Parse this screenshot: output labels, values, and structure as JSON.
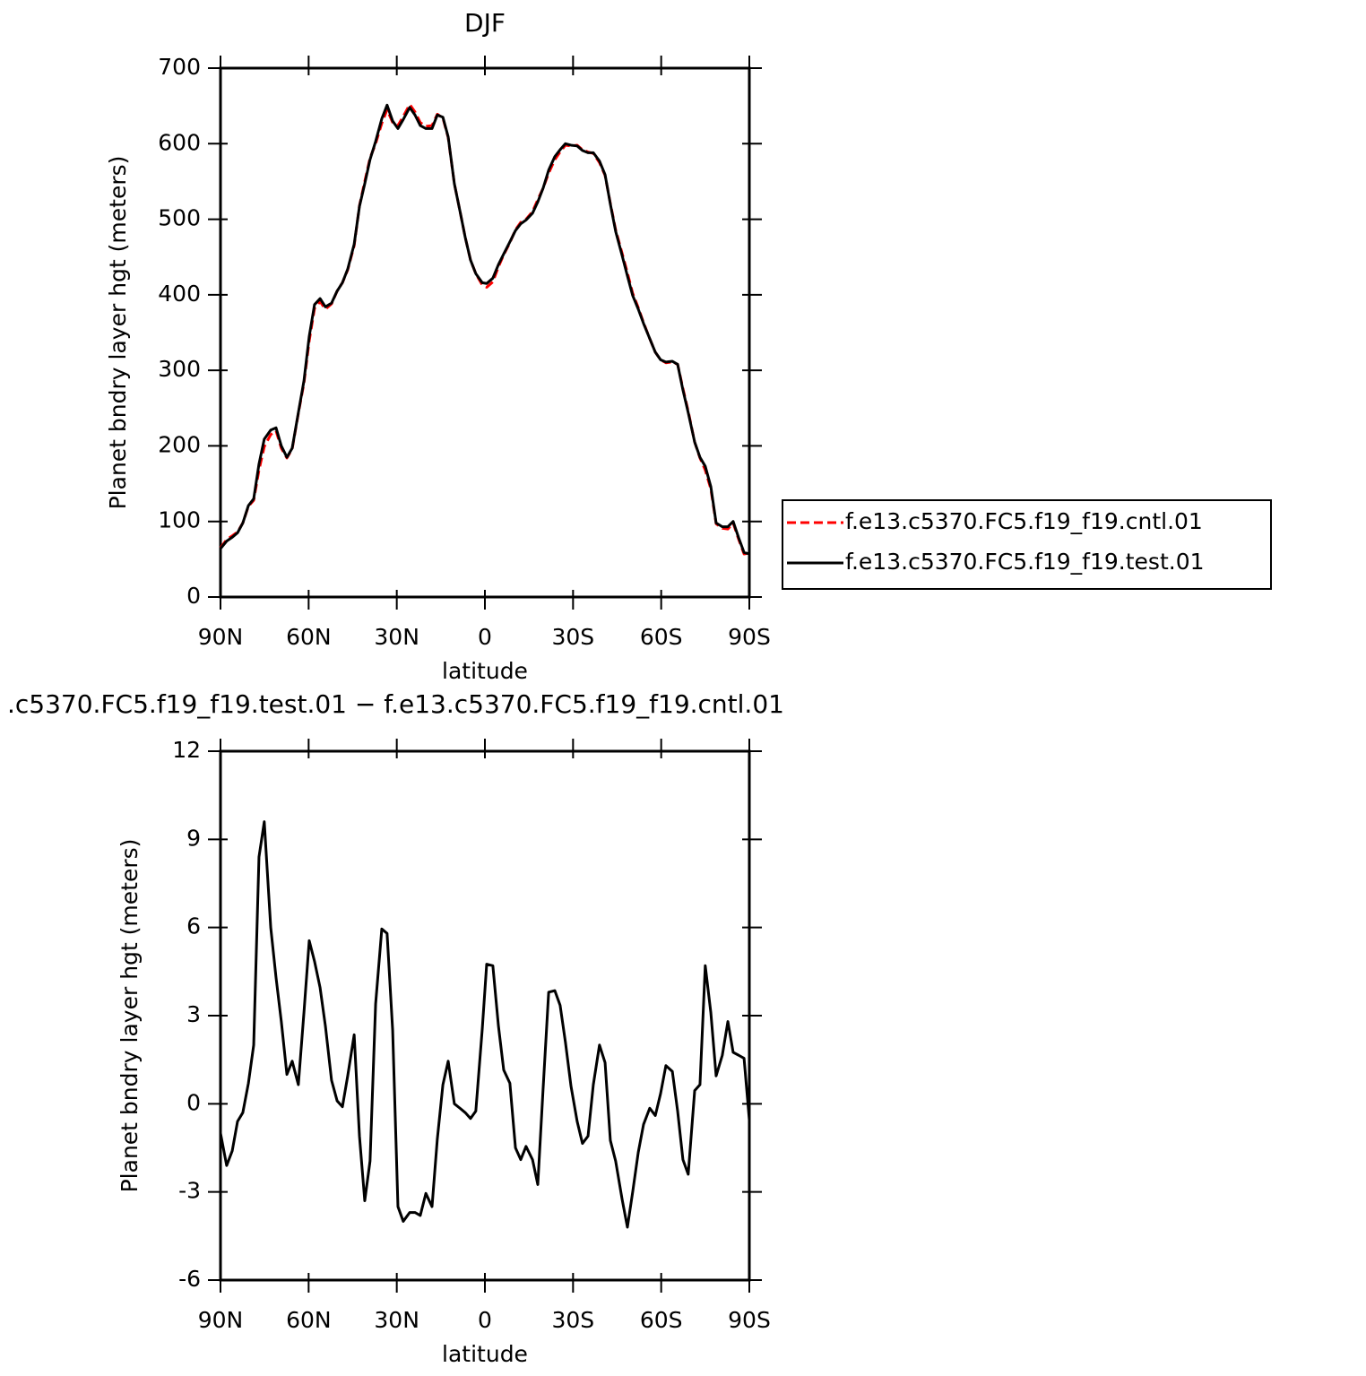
{
  "chart_data": [
    {
      "type": "line",
      "title": "DJF",
      "xlabel": "latitude",
      "ylabel": "Planet bndry layer hgt (meters)",
      "xlim": [
        90,
        -90
      ],
      "xticks": [
        {
          "value": 90,
          "label": "90N"
        },
        {
          "value": 60,
          "label": "60N"
        },
        {
          "value": 30,
          "label": "30N"
        },
        0,
        {
          "value": -30,
          "label": "30S"
        },
        {
          "value": -60,
          "label": "60S"
        },
        {
          "value": -90,
          "label": "90S"
        }
      ],
      "ylim": [
        0,
        700
      ],
      "yticks": [
        0,
        100,
        200,
        300,
        400,
        500,
        600,
        700
      ],
      "legend_position": "right",
      "x": [
        90,
        87.9,
        86,
        84.2,
        82.4,
        80.5,
        78.7,
        76.9,
        75.1,
        72.9,
        71.1,
        69.3,
        67.4,
        65.6,
        63.5,
        61.6,
        59.8,
        58,
        56.1,
        54.3,
        52.2,
        50.3,
        48.5,
        46.7,
        44.5,
        42.7,
        40.9,
        39.1,
        37.2,
        35.1,
        33.3,
        31.4,
        29.6,
        27.8,
        25.6,
        23.8,
        22,
        20.1,
        18,
        16.2,
        14.3,
        12.5,
        10.4,
        8.5,
        6.7,
        4.9,
        3.1,
        0.9,
        -0.6,
        -2.7,
        -4.6,
        -6.4,
        -8.5,
        -10.4,
        -12.2,
        -14,
        -16.2,
        -18,
        -19.8,
        -21.7,
        -23.8,
        -25.6,
        -27.4,
        -29.3,
        -31.4,
        -33.2,
        -35.1,
        -36.9,
        -39,
        -40.9,
        -42.7,
        -44.5,
        -46.7,
        -48.5,
        -50.3,
        -52.2,
        -54,
        -56.1,
        -58,
        -59.8,
        -61.6,
        -63.8,
        -65.6,
        -67.4,
        -69.2,
        -71.4,
        -73.2,
        -75,
        -76.9,
        -78.7,
        -80.8,
        -82.7,
        -84.5,
        -86.4,
        -88.2,
        -90
      ],
      "series": [
        {
          "name": "f.e13.c5370.FC5.f19_f19.cntl.01",
          "color": "#ff0000",
          "line_style": "dashed",
          "values": [
            65,
            76,
            81,
            86,
            98,
            120,
            128,
            168,
            199,
            215,
            220,
            197,
            184,
            196,
            243,
            283,
            339,
            382,
            391,
            381,
            388,
            405,
            416,
            433,
            465,
            518,
            550,
            581,
            600,
            627,
            645,
            628,
            624,
            636,
            652,
            642,
            628,
            623,
            624,
            639,
            634,
            608,
            547,
            511,
            476,
            446,
            428,
            413,
            410,
            417,
            437,
            453,
            469,
            486,
            496,
            500,
            510,
            526,
            541,
            561,
            579,
            589,
            598,
            597,
            598,
            592,
            589,
            587,
            575,
            558,
            521,
            486,
            455,
            429,
            402,
            383,
            363,
            342,
            324,
            314,
            310,
            311,
            308,
            276,
            246,
            205,
            184,
            168,
            143,
            97,
            91,
            90,
            98,
            76,
            57,
            58
          ]
        },
        {
          "name": "f.e13.c5370.FC5.f19_f19.test.01",
          "color": "#000000",
          "line_style": "solid",
          "values": [
            64,
            74,
            79,
            85,
            98,
            121,
            130,
            176,
            209,
            221,
            224,
            200,
            185,
            197,
            244,
            286,
            345,
            387,
            395,
            384,
            389,
            405,
            416,
            434,
            467,
            517,
            547,
            579,
            603,
            633,
            651,
            630,
            620,
            632,
            648,
            638,
            624,
            620,
            620,
            638,
            635,
            609,
            547,
            511,
            476,
            446,
            428,
            416,
            415,
            422,
            440,
            454,
            470,
            485,
            494,
            499,
            508,
            523,
            541,
            565,
            583,
            592,
            600,
            598,
            597,
            591,
            588,
            588,
            577,
            559,
            520,
            484,
            452,
            425,
            399,
            381,
            362,
            342,
            324,
            314,
            311,
            312,
            308,
            274,
            244,
            205,
            185,
            173,
            146,
            98,
            93,
            93,
            100,
            78,
            59,
            57
          ]
        }
      ]
    },
    {
      "type": "line",
      "title": ".c5370.FC5.f19_f19.test.01 − f.e13.c5370.FC5.f19_f19.cntl.01",
      "xlabel": "latitude",
      "ylabel": "Planet bndry layer hgt (meters)",
      "xlim": [
        90,
        -90
      ],
      "xticks": [
        {
          "value": 90,
          "label": "90N"
        },
        {
          "value": 60,
          "label": "60N"
        },
        {
          "value": 30,
          "label": "30N"
        },
        0,
        {
          "value": -30,
          "label": "30S"
        },
        {
          "value": -60,
          "label": "60S"
        },
        {
          "value": -90,
          "label": "90S"
        }
      ],
      "ylim": [
        -6,
        12
      ],
      "yticks": [
        -6,
        -3,
        0,
        3,
        6,
        9,
        12
      ],
      "color": "#000000",
      "x": [
        90,
        87.9,
        86,
        84.2,
        82.4,
        80.5,
        78.7,
        76.9,
        75.1,
        72.9,
        71.1,
        69.3,
        67.4,
        65.6,
        63.5,
        61.6,
        59.8,
        58,
        56.1,
        54.3,
        52.2,
        50.3,
        48.5,
        46.7,
        44.5,
        42.7,
        40.9,
        39.1,
        37.2,
        35.1,
        33.3,
        31.4,
        29.6,
        27.8,
        25.6,
        23.8,
        22,
        20.1,
        18,
        16.2,
        14.3,
        12.5,
        10.4,
        8.5,
        6.7,
        4.9,
        3.1,
        0.9,
        -0.6,
        -2.7,
        -4.6,
        -6.4,
        -8.5,
        -10.4,
        -12.2,
        -14,
        -16.2,
        -18,
        -19.8,
        -21.7,
        -23.8,
        -25.6,
        -27.4,
        -29.3,
        -31.4,
        -33.2,
        -35.1,
        -36.9,
        -39,
        -40.9,
        -42.7,
        -44.5,
        -46.7,
        -48.5,
        -50.3,
        -52.2,
        -54,
        -56.1,
        -58,
        -59.8,
        -61.6,
        -63.8,
        -65.6,
        -67.4,
        -69.2,
        -71.4,
        -73.2,
        -75,
        -76.9,
        -78.7,
        -80.8,
        -82.7,
        -84.5,
        -86.4,
        -88.2,
        -90
      ],
      "values": [
        -1.0,
        -2.1,
        -1.6,
        -0.6,
        -0.3,
        0.7,
        2.0,
        8.4,
        9.6,
        6.0,
        4.3,
        2.8,
        1.0,
        1.45,
        0.65,
        3.1,
        5.55,
        4.85,
        3.95,
        2.65,
        0.8,
        0.1,
        -0.1,
        0.95,
        2.35,
        -1.1,
        -3.3,
        -1.95,
        3.4,
        5.95,
        5.8,
        2.5,
        -3.5,
        -4.0,
        -3.7,
        -3.7,
        -3.8,
        -3.05,
        -3.5,
        -1.2,
        0.65,
        1.45,
        0.0,
        -0.15,
        -0.3,
        -0.5,
        -0.25,
        2.55,
        4.75,
        4.7,
        2.65,
        1.15,
        0.7,
        -1.5,
        -1.9,
        -1.45,
        -1.9,
        -2.75,
        0.5,
        3.8,
        3.85,
        3.35,
        2.1,
        0.6,
        -0.6,
        -1.35,
        -1.1,
        0.65,
        2.0,
        1.4,
        -1.25,
        -1.95,
        -3.25,
        -4.2,
        -3.0,
        -1.65,
        -0.7,
        -0.15,
        -0.4,
        0.35,
        1.3,
        1.1,
        -0.25,
        -1.9,
        -2.4,
        0.45,
        0.65,
        4.7,
        3.1,
        0.95,
        1.65,
        2.8,
        1.75,
        1.65,
        1.55,
        -0.55
      ]
    }
  ]
}
